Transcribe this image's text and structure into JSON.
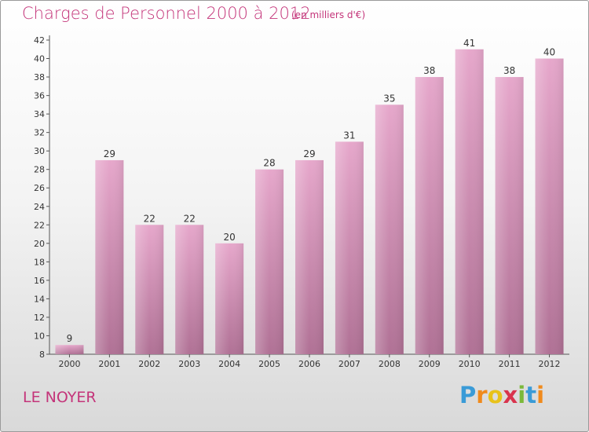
{
  "title": "Charges de Personnel 2000 à 2012",
  "subtitle": "(en milliers d'€)",
  "place": "LE NOYER",
  "logo": [
    "P",
    "r",
    "o",
    "x",
    "i",
    "t",
    "i"
  ],
  "colors": {
    "title": "#c4357a",
    "bar_top": "#e6a7cb",
    "bar_bottom": "#b07195"
  },
  "chart_data": {
    "type": "bar",
    "categories": [
      "2000",
      "2001",
      "2002",
      "2003",
      "2004",
      "2005",
      "2006",
      "2007",
      "2008",
      "2009",
      "2010",
      "2011",
      "2012"
    ],
    "values": [
      9,
      29,
      22,
      22,
      20,
      28,
      29,
      31,
      35,
      38,
      41,
      38,
      40
    ],
    "ylim": [
      8,
      42
    ],
    "yticks": [
      8,
      10,
      12,
      14,
      16,
      18,
      20,
      22,
      24,
      26,
      28,
      30,
      32,
      34,
      36,
      38,
      40,
      42
    ],
    "grid": false,
    "legend": false
  }
}
